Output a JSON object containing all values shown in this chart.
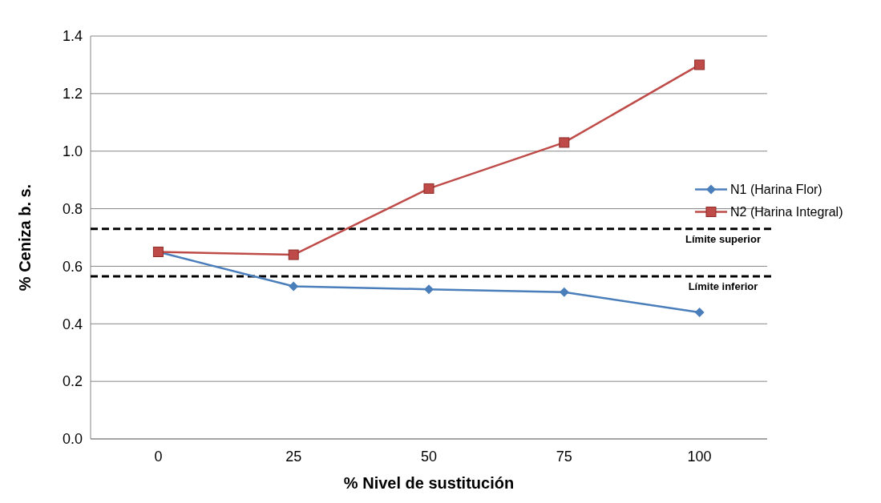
{
  "chart_data": {
    "type": "line",
    "xlabel": "% Nivel de sustitución",
    "ylabel": "% Ceniza b. s.",
    "categories": [
      "0",
      "25",
      "50",
      "75",
      "100"
    ],
    "series": [
      {
        "name": "N1 (Harina Flor)",
        "color": "#4a7ebb",
        "marker": "diamond",
        "values": [
          0.65,
          0.53,
          0.52,
          0.51,
          0.44
        ]
      },
      {
        "name": "N2 (Harina Integral)",
        "color": "#be4b48",
        "marker": "square",
        "values": [
          0.65,
          0.64,
          0.87,
          1.03,
          1.3
        ]
      }
    ],
    "ylim": [
      0,
      1.4
    ],
    "yticks": [
      {
        "value": 0,
        "label": "0.0"
      },
      {
        "value": 0.2,
        "label": "0.2"
      },
      {
        "value": 0.4,
        "label": "0.4"
      },
      {
        "value": 0.6,
        "label": "0.6"
      },
      {
        "value": 0.8,
        "label": "0.8"
      },
      {
        "value": 1.0,
        "label": "1.0"
      },
      {
        "value": 1.2,
        "label": "1.2"
      },
      {
        "value": 1.4,
        "label": "1.4"
      }
    ],
    "grid": "y",
    "legend": "right",
    "ref_lines": [
      {
        "axis": "y",
        "value": 0.73,
        "label": "Límite superior",
        "color": "#000000",
        "line_style": "dashed"
      },
      {
        "axis": "y",
        "value": 0.565,
        "label": "Límite inferior",
        "color": "#000000",
        "line_style": "dashed"
      }
    ]
  }
}
